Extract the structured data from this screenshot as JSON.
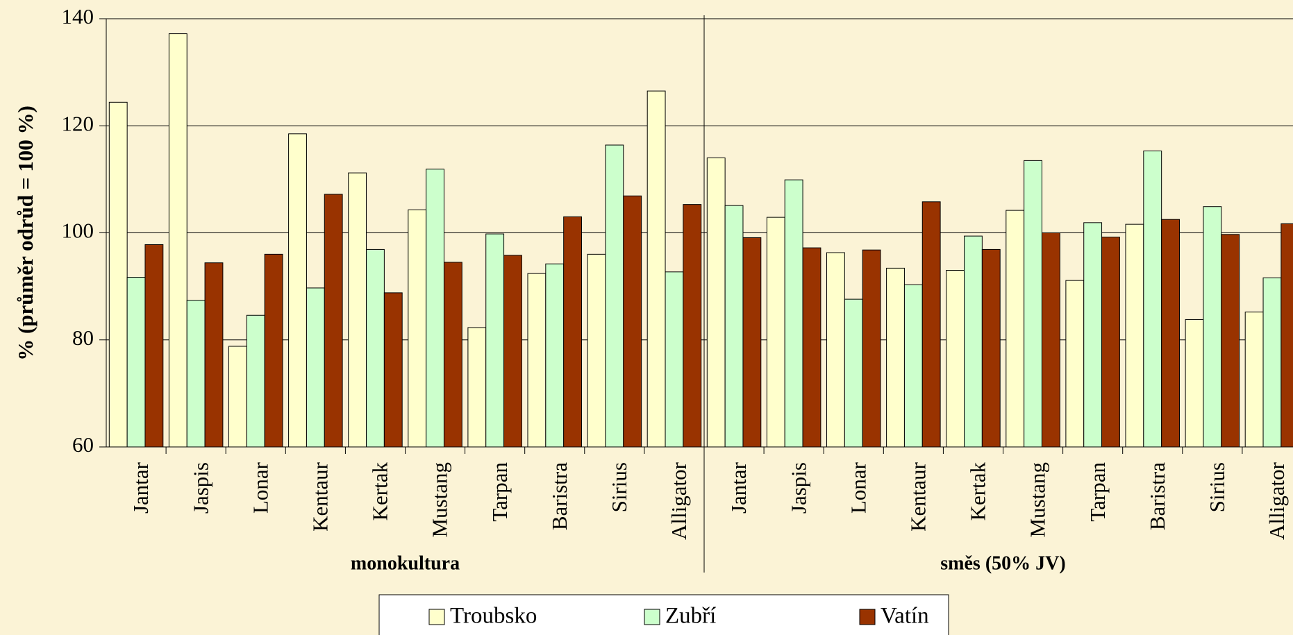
{
  "chart_data": {
    "type": "bar",
    "y_label": "% (průměr odrůd = 100 %)",
    "groups": [
      "monokultura",
      "směs (50% JV)"
    ],
    "categories": [
      "Jantar",
      "Jaspis",
      "Lonar",
      "Kentaur",
      "Kertak",
      "Mustang",
      "Tarpan",
      "Baristra",
      "Sirius",
      "Alligator",
      "Jantar",
      "Jaspis",
      "Lonar",
      "Kentaur",
      "Kertak",
      "Mustang",
      "Tarpan",
      "Baristra",
      "Sirius",
      "Alligator"
    ],
    "series": [
      {
        "name": "Troubsko",
        "color": "#ffffcc",
        "values": [
          124.4,
          137.2,
          78.8,
          118.5,
          111.2,
          104.3,
          82.3,
          92.4,
          96.0,
          126.5,
          114.0,
          102.9,
          96.3,
          93.4,
          93.0,
          104.2,
          91.1,
          101.6,
          83.8,
          85.2
        ]
      },
      {
        "name": "Zubří",
        "color": "#ccffcc",
        "values": [
          91.7,
          87.4,
          84.6,
          89.7,
          96.9,
          111.9,
          99.8,
          94.2,
          116.4,
          92.7,
          105.1,
          109.9,
          87.6,
          90.3,
          99.4,
          113.5,
          101.9,
          115.3,
          104.9,
          91.6
        ]
      },
      {
        "name": "Vatín",
        "color": "#993300",
        "values": [
          97.8,
          94.4,
          96.0,
          107.2,
          88.8,
          94.5,
          95.8,
          103.0,
          106.9,
          105.3,
          99.1,
          97.2,
          96.8,
          105.8,
          96.9,
          100.0,
          99.2,
          102.5,
          99.7,
          101.7
        ]
      }
    ],
    "ylim": [
      60,
      140
    ],
    "yticks": [
      60,
      80,
      100,
      120,
      140
    ],
    "grid": true,
    "legend": "bottom"
  }
}
